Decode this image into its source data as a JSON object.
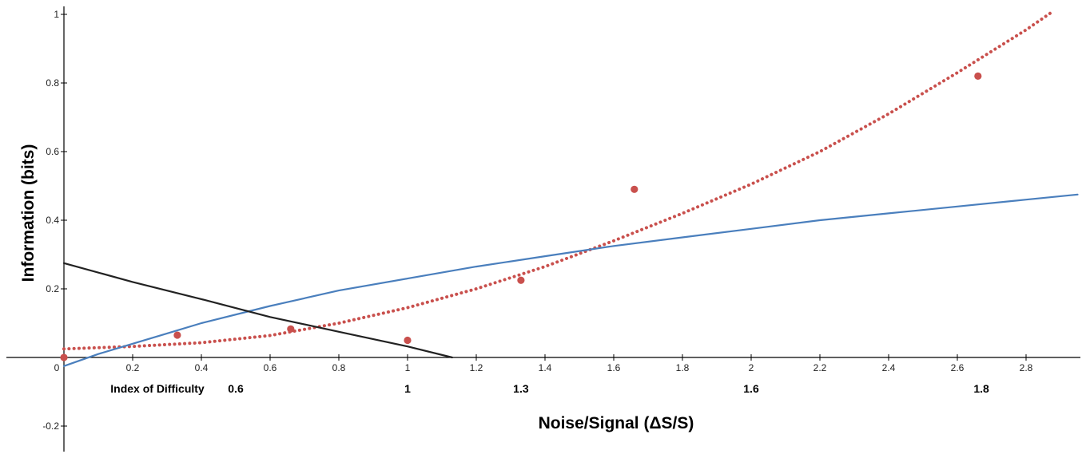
{
  "chart_data": {
    "type": "scatter",
    "title": "",
    "ylabel": "Information  (bits)",
    "xlabel": "Noise/Signal (ΔS/S)",
    "xlim": [
      -0.15,
      2.95
    ],
    "ylim": [
      -0.3,
      1.02
    ],
    "x_ticks": [
      {
        "value": 0,
        "label": "0"
      },
      {
        "value": 0.2,
        "label": "0.2"
      },
      {
        "value": 0.4,
        "label": "0.4"
      },
      {
        "value": 0.6,
        "label": "0.6"
      },
      {
        "value": 0.8,
        "label": "0.8"
      },
      {
        "value": 1,
        "label": "1"
      },
      {
        "value": 1.2,
        "label": "1.2"
      },
      {
        "value": 1.4,
        "label": "1.4"
      },
      {
        "value": 1.6,
        "label": "1.6"
      },
      {
        "value": 1.8,
        "label": "1.8"
      },
      {
        "value": 2,
        "label": "2"
      },
      {
        "value": 2.2,
        "label": "2.2"
      },
      {
        "value": 2.4,
        "label": "2.4"
      },
      {
        "value": 2.6,
        "label": "2.6"
      },
      {
        "value": 2.8,
        "label": "2.8"
      }
    ],
    "y_ticks": [
      {
        "value": -0.2,
        "label": "-0.2"
      },
      {
        "value": 0.2,
        "label": "0.2"
      },
      {
        "value": 0.4,
        "label": "0.4"
      },
      {
        "value": 0.6,
        "label": "0.6"
      },
      {
        "value": 0.8,
        "label": "0.8"
      },
      {
        "value": 1,
        "label": "1"
      }
    ],
    "index_of_difficulty": {
      "label": "Index of Difficulty",
      "items": [
        {
          "x": 0.67,
          "label": "0.6"
        },
        {
          "x": 1.0,
          "label": "1"
        },
        {
          "x": 1.33,
          "label": "1.3"
        },
        {
          "x": 2.0,
          "label": "1.6"
        },
        {
          "x": 2.67,
          "label": "1.8"
        }
      ]
    },
    "series": [
      {
        "kind": "points",
        "color": "#c9504d",
        "points": [
          {
            "x": 0,
            "y": 0.0
          },
          {
            "x": 0.33,
            "y": 0.065
          },
          {
            "x": 0.66,
            "y": 0.083
          },
          {
            "x": 1.0,
            "y": 0.05
          },
          {
            "x": 1.33,
            "y": 0.225
          },
          {
            "x": 1.66,
            "y": 0.49
          },
          {
            "x": 2.66,
            "y": 0.82
          }
        ]
      },
      {
        "kind": "line",
        "style": "dotted",
        "color": "#c9504d",
        "points": [
          {
            "x": 0,
            "y": 0.025
          },
          {
            "x": 0.2,
            "y": 0.032
          },
          {
            "x": 0.4,
            "y": 0.043
          },
          {
            "x": 0.6,
            "y": 0.064
          },
          {
            "x": 0.8,
            "y": 0.1
          },
          {
            "x": 1.0,
            "y": 0.145
          },
          {
            "x": 1.2,
            "y": 0.2
          },
          {
            "x": 1.4,
            "y": 0.265
          },
          {
            "x": 1.6,
            "y": 0.34
          },
          {
            "x": 1.8,
            "y": 0.42
          },
          {
            "x": 2.0,
            "y": 0.505
          },
          {
            "x": 2.2,
            "y": 0.6
          },
          {
            "x": 2.4,
            "y": 0.71
          },
          {
            "x": 2.6,
            "y": 0.83
          },
          {
            "x": 2.8,
            "y": 0.955
          },
          {
            "x": 2.88,
            "y": 1.01
          }
        ]
      },
      {
        "kind": "line",
        "style": "solid",
        "color": "#4a7fbd",
        "points": [
          {
            "x": 0,
            "y": -0.025
          },
          {
            "x": 0.1,
            "y": 0.01
          },
          {
            "x": 0.2,
            "y": 0.04
          },
          {
            "x": 0.3,
            "y": 0.07
          },
          {
            "x": 0.4,
            "y": 0.1
          },
          {
            "x": 0.6,
            "y": 0.15
          },
          {
            "x": 0.8,
            "y": 0.195
          },
          {
            "x": 1.0,
            "y": 0.23
          },
          {
            "x": 1.2,
            "y": 0.265
          },
          {
            "x": 1.4,
            "y": 0.295
          },
          {
            "x": 1.6,
            "y": 0.325
          },
          {
            "x": 1.8,
            "y": 0.35
          },
          {
            "x": 2.0,
            "y": 0.375
          },
          {
            "x": 2.2,
            "y": 0.4
          },
          {
            "x": 2.4,
            "y": 0.42
          },
          {
            "x": 2.6,
            "y": 0.44
          },
          {
            "x": 2.8,
            "y": 0.46
          },
          {
            "x": 2.95,
            "y": 0.475
          }
        ]
      },
      {
        "kind": "line",
        "style": "solid",
        "color": "#222222",
        "points": [
          {
            "x": 0,
            "y": 0.275
          },
          {
            "x": 0.2,
            "y": 0.22
          },
          {
            "x": 0.4,
            "y": 0.17
          },
          {
            "x": 0.6,
            "y": 0.118
          },
          {
            "x": 0.8,
            "y": 0.075
          },
          {
            "x": 1.0,
            "y": 0.032
          },
          {
            "x": 1.13,
            "y": 0.0
          }
        ]
      }
    ]
  }
}
